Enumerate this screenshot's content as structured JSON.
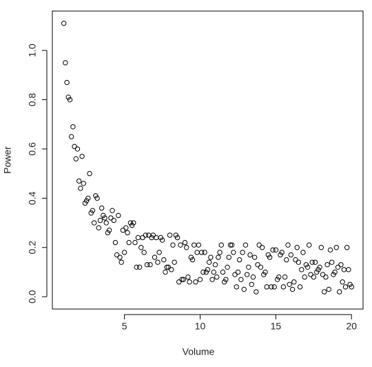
{
  "chart_data": {
    "type": "scatter",
    "x_label": "Volume",
    "y_label": "Power",
    "x": [
      1.0,
      1.1,
      1.2,
      1.3,
      1.4,
      1.5,
      1.6,
      1.7,
      1.8,
      1.9,
      2.0,
      2.1,
      2.2,
      2.3,
      2.4,
      2.5,
      2.6,
      2.7,
      2.8,
      2.9,
      3.0,
      3.1,
      3.2,
      3.3,
      3.4,
      3.5,
      3.6,
      3.7,
      3.8,
      3.9,
      4.0,
      4.1,
      4.2,
      4.3,
      4.4,
      4.5,
      4.6,
      4.7,
      4.8,
      4.9,
      5.0,
      5.1,
      5.2,
      5.3,
      5.4,
      5.5,
      5.6,
      5.7,
      5.8,
      5.9,
      6.0,
      6.1,
      6.2,
      6.3,
      6.4,
      6.5,
      6.6,
      6.7,
      6.8,
      6.9,
      7.0,
      7.1,
      7.2,
      7.3,
      7.4,
      7.5,
      7.6,
      7.7,
      7.8,
      7.9,
      8.0,
      8.1,
      8.2,
      8.3,
      8.4,
      8.5,
      8.6,
      8.7,
      8.8,
      8.9,
      9.0,
      9.1,
      9.2,
      9.3,
      9.4,
      9.5,
      9.6,
      9.7,
      9.8,
      9.9,
      10.0,
      10.1,
      10.2,
      10.3,
      10.4,
      10.5,
      10.6,
      10.7,
      10.8,
      10.9,
      11.0,
      11.1,
      11.2,
      11.3,
      11.4,
      11.5,
      11.6,
      11.7,
      11.8,
      11.9,
      12.0,
      12.1,
      12.2,
      12.3,
      12.4,
      12.5,
      12.6,
      12.7,
      12.8,
      12.9,
      13.0,
      13.1,
      13.2,
      13.3,
      13.4,
      13.5,
      13.6,
      13.7,
      13.8,
      13.9,
      14.0,
      14.1,
      14.2,
      14.3,
      14.4,
      14.5,
      14.6,
      14.7,
      14.8,
      14.9,
      15.0,
      15.1,
      15.2,
      15.3,
      15.4,
      15.5,
      15.6,
      15.7,
      15.8,
      15.9,
      16.0,
      16.1,
      16.2,
      16.3,
      16.4,
      16.5,
      16.6,
      16.7,
      16.8,
      16.9,
      17.0,
      17.1,
      17.2,
      17.3,
      17.4,
      17.5,
      17.6,
      17.7,
      17.8,
      17.9,
      18.0,
      18.1,
      18.2,
      18.3,
      18.4,
      18.5,
      18.6,
      18.7,
      18.8,
      18.9,
      19.0,
      19.1,
      19.2,
      19.3,
      19.4,
      19.5,
      19.6,
      19.7,
      19.8,
      19.9,
      20.0
    ],
    "values": [
      1.11,
      0.95,
      0.87,
      0.81,
      0.8,
      0.65,
      0.69,
      0.61,
      0.56,
      0.6,
      0.47,
      0.44,
      0.57,
      0.46,
      0.38,
      0.39,
      0.4,
      0.5,
      0.34,
      0.35,
      0.3,
      0.41,
      0.4,
      0.28,
      0.31,
      0.36,
      0.33,
      0.32,
      0.3,
      0.26,
      0.27,
      0.32,
      0.35,
      0.31,
      0.22,
      0.17,
      0.33,
      0.16,
      0.14,
      0.27,
      0.18,
      0.28,
      0.26,
      0.22,
      0.3,
      0.29,
      0.3,
      0.22,
      0.12,
      0.24,
      0.12,
      0.2,
      0.24,
      0.18,
      0.25,
      0.13,
      0.25,
      0.13,
      0.24,
      0.25,
      0.16,
      0.24,
      0.14,
      0.18,
      0.24,
      0.23,
      0.15,
      0.1,
      0.12,
      0.12,
      0.25,
      0.11,
      0.21,
      0.14,
      0.25,
      0.24,
      0.06,
      0.21,
      0.07,
      0.07,
      0.22,
      0.2,
      0.08,
      0.06,
      0.16,
      0.15,
      0.21,
      0.06,
      0.18,
      0.21,
      0.07,
      0.18,
      0.1,
      0.18,
      0.1,
      0.11,
      0.14,
      0.16,
      0.07,
      0.1,
      0.13,
      0.08,
      0.16,
      0.18,
      0.21,
      0.1,
      0.06,
      0.07,
      0.12,
      0.16,
      0.21,
      0.21,
      0.18,
      0.09,
      0.04,
      0.1,
      0.15,
      0.07,
      0.18,
      0.03,
      0.21,
      0.09,
      0.12,
      0.17,
      0.05,
      0.08,
      0.16,
      0.02,
      0.13,
      0.21,
      0.12,
      0.2,
      0.09,
      0.1,
      0.04,
      0.17,
      0.16,
      0.04,
      0.19,
      0.04,
      0.19,
      0.07,
      0.08,
      0.17,
      0.18,
      0.04,
      0.08,
      0.15,
      0.21,
      0.05,
      0.17,
      0.03,
      0.06,
      0.15,
      0.2,
      0.14,
      0.04,
      0.11,
      0.18,
      0.08,
      0.13,
      0.12,
      0.21,
      0.09,
      0.14,
      0.08,
      0.14,
      0.1,
      0.11,
      0.12,
      0.2,
      0.09,
      0.02,
      0.08,
      0.13,
      0.03,
      0.19,
      0.14,
      0.09,
      0.1,
      0.2,
      0.12,
      0.02,
      0.13,
      0.06,
      0.11,
      0.04,
      0.2,
      0.11,
      0.05,
      0.04
    ],
    "color": "#000000",
    "xlim": [
      0.24,
      20.76
    ],
    "ylim": [
      -0.05,
      1.16
    ],
    "xticks": [
      5,
      10,
      15,
      20
    ],
    "yticks": [
      {
        "value": 0,
        "label": "0.0"
      },
      {
        "value": 0.2,
        "label": "0.2"
      },
      {
        "value": 0.4,
        "label": "0.4"
      },
      {
        "value": 0.6,
        "label": "0.6"
      },
      {
        "value": 0.8,
        "label": "0.8"
      },
      {
        "value": 1,
        "label": "1.0"
      }
    ]
  }
}
